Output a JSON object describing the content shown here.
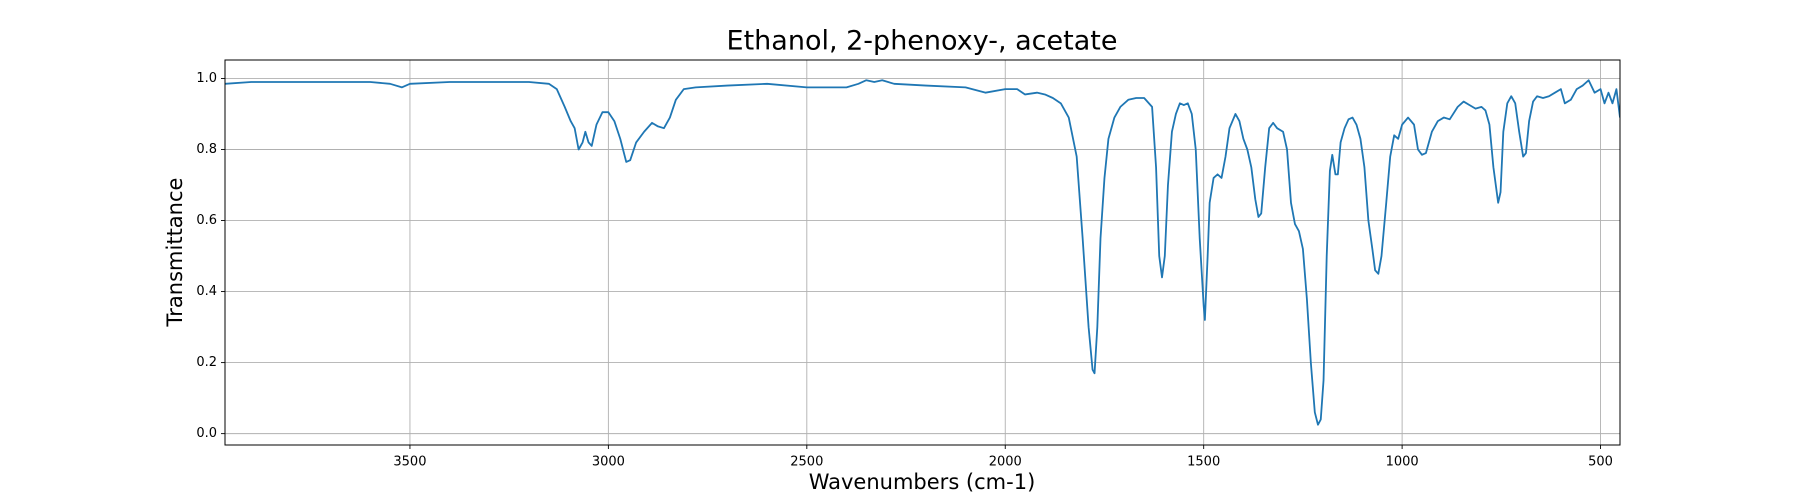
{
  "chart_data": {
    "type": "line",
    "title": "Ethanol, 2-phenoxy-, acetate",
    "x_label": "Wavenumbers (cm-1)",
    "y_label": "Transmittance",
    "color": "#1f77b4",
    "grid": true,
    "xlim": [
      3966,
      451
    ],
    "ylim": [
      -0.032,
      1.052
    ],
    "xticks": [
      3500,
      3000,
      2500,
      2000,
      1500,
      1000,
      500
    ],
    "yticks": [
      {
        "value": 0,
        "label": "0.0"
      },
      {
        "value": 0.2,
        "label": "0.2"
      },
      {
        "value": 0.4,
        "label": "0.4"
      },
      {
        "value": 0.6,
        "label": "0.6"
      },
      {
        "value": 0.8,
        "label": "0.8"
      },
      {
        "value": 1,
        "label": "1.0"
      }
    ],
    "x": [
      3966,
      3900,
      3800,
      3700,
      3600,
      3550,
      3520,
      3500,
      3400,
      3300,
      3200,
      3150,
      3130,
      3110,
      3095,
      3085,
      3075,
      3065,
      3058,
      3050,
      3042,
      3030,
      3015,
      3000,
      2985,
      2970,
      2955,
      2945,
      2930,
      2910,
      2890,
      2875,
      2860,
      2845,
      2830,
      2810,
      2780,
      2700,
      2600,
      2500,
      2400,
      2370,
      2350,
      2330,
      2310,
      2280,
      2200,
      2100,
      2050,
      2000,
      1970,
      1950,
      1920,
      1900,
      1880,
      1860,
      1840,
      1820,
      1805,
      1790,
      1780,
      1775,
      1768,
      1760,
      1750,
      1740,
      1725,
      1710,
      1690,
      1670,
      1650,
      1630,
      1620,
      1612,
      1605,
      1598,
      1590,
      1580,
      1570,
      1560,
      1550,
      1540,
      1530,
      1520,
      1510,
      1500,
      1497,
      1490,
      1485,
      1475,
      1465,
      1455,
      1445,
      1435,
      1420,
      1410,
      1400,
      1390,
      1380,
      1370,
      1362,
      1355,
      1345,
      1335,
      1325,
      1315,
      1300,
      1290,
      1280,
      1270,
      1260,
      1250,
      1240,
      1230,
      1220,
      1212,
      1205,
      1198,
      1190,
      1182,
      1176,
      1168,
      1162,
      1155,
      1145,
      1135,
      1125,
      1115,
      1105,
      1095,
      1085,
      1075,
      1068,
      1060,
      1052,
      1040,
      1030,
      1020,
      1010,
      1000,
      985,
      970,
      960,
      950,
      940,
      925,
      910,
      895,
      880,
      860,
      845,
      830,
      815,
      800,
      790,
      780,
      770,
      758,
      752,
      745,
      735,
      725,
      715,
      705,
      695,
      688,
      680,
      670,
      660,
      645,
      630,
      615,
      600,
      590,
      575,
      560,
      545,
      530,
      515,
      500,
      490,
      480,
      470,
      460,
      451
    ],
    "values": [
      0.985,
      0.99,
      0.99,
      0.99,
      0.99,
      0.985,
      0.975,
      0.985,
      0.99,
      0.99,
      0.99,
      0.985,
      0.97,
      0.92,
      0.88,
      0.86,
      0.8,
      0.82,
      0.85,
      0.82,
      0.81,
      0.87,
      0.905,
      0.905,
      0.88,
      0.83,
      0.765,
      0.77,
      0.82,
      0.85,
      0.875,
      0.865,
      0.86,
      0.89,
      0.94,
      0.97,
      0.975,
      0.98,
      0.985,
      0.975,
      0.975,
      0.985,
      0.995,
      0.99,
      0.995,
      0.985,
      0.98,
      0.975,
      0.96,
      0.97,
      0.97,
      0.955,
      0.96,
      0.955,
      0.945,
      0.93,
      0.89,
      0.78,
      0.55,
      0.3,
      0.18,
      0.17,
      0.3,
      0.55,
      0.72,
      0.83,
      0.89,
      0.92,
      0.94,
      0.945,
      0.945,
      0.92,
      0.75,
      0.5,
      0.44,
      0.5,
      0.7,
      0.85,
      0.9,
      0.93,
      0.925,
      0.93,
      0.9,
      0.8,
      0.55,
      0.36,
      0.32,
      0.5,
      0.65,
      0.72,
      0.73,
      0.72,
      0.78,
      0.86,
      0.9,
      0.88,
      0.83,
      0.8,
      0.75,
      0.66,
      0.61,
      0.62,
      0.75,
      0.86,
      0.875,
      0.86,
      0.85,
      0.8,
      0.65,
      0.59,
      0.57,
      0.52,
      0.38,
      0.2,
      0.06,
      0.025,
      0.04,
      0.15,
      0.5,
      0.74,
      0.785,
      0.73,
      0.73,
      0.82,
      0.86,
      0.885,
      0.89,
      0.87,
      0.83,
      0.75,
      0.6,
      0.52,
      0.46,
      0.45,
      0.5,
      0.65,
      0.78,
      0.84,
      0.83,
      0.87,
      0.89,
      0.87,
      0.8,
      0.785,
      0.79,
      0.85,
      0.88,
      0.89,
      0.885,
      0.92,
      0.935,
      0.925,
      0.915,
      0.92,
      0.91,
      0.87,
      0.75,
      0.65,
      0.68,
      0.85,
      0.93,
      0.95,
      0.93,
      0.85,
      0.78,
      0.79,
      0.88,
      0.935,
      0.95,
      0.945,
      0.95,
      0.96,
      0.97,
      0.93,
      0.94,
      0.97,
      0.98,
      0.995,
      0.96,
      0.97,
      0.93,
      0.96,
      0.93,
      0.97,
      0.89
    ]
  }
}
